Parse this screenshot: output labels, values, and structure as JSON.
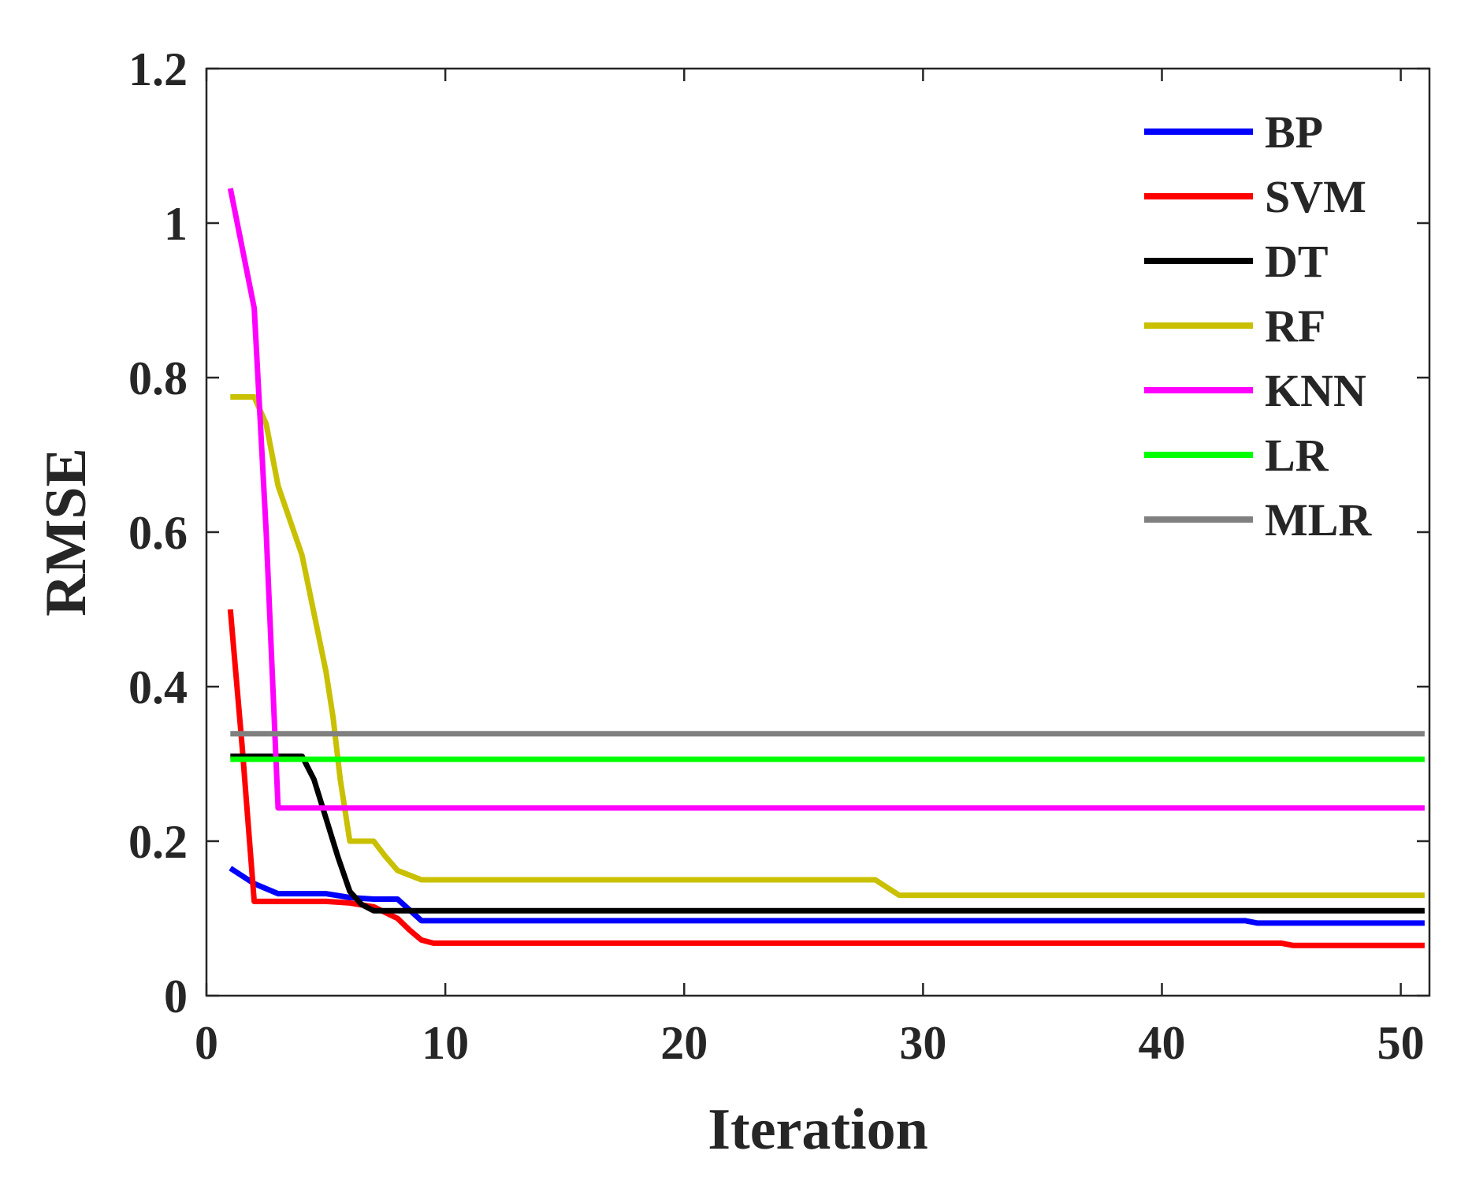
{
  "chart_data": {
    "type": "line",
    "title": "",
    "xlabel": "Iteration",
    "ylabel": "RMSE",
    "xlim": [
      0,
      51.2
    ],
    "ylim": [
      0,
      1.2
    ],
    "xticks": [
      0,
      10,
      20,
      30,
      40,
      50
    ],
    "xtick_labels": [
      "0",
      "10",
      "20",
      "30",
      "40",
      "50"
    ],
    "yticks": [
      0,
      0.2,
      0.4,
      0.6,
      0.8,
      1.0,
      1.2
    ],
    "ytick_labels": [
      "0",
      "0.2",
      "0.4",
      "0.6",
      "0.8",
      "1",
      "1.2"
    ],
    "grid": false,
    "legend_position": "top-right",
    "series": [
      {
        "name": "BP",
        "color": "#0000ff",
        "points": [
          [
            1,
            0.165
          ],
          [
            2,
            0.145
          ],
          [
            3,
            0.132
          ],
          [
            4,
            0.132
          ],
          [
            5,
            0.132
          ],
          [
            6,
            0.127
          ],
          [
            7,
            0.125
          ],
          [
            8,
            0.125
          ],
          [
            9,
            0.097
          ],
          [
            10,
            0.097
          ],
          [
            20,
            0.097
          ],
          [
            30,
            0.097
          ],
          [
            40,
            0.097
          ],
          [
            43.5,
            0.097
          ],
          [
            44,
            0.094
          ],
          [
            51,
            0.094
          ]
        ]
      },
      {
        "name": "SVM",
        "color": "#ff0000",
        "points": [
          [
            1,
            0.5
          ],
          [
            1.5,
            0.32
          ],
          [
            2,
            0.122
          ],
          [
            3,
            0.122
          ],
          [
            4,
            0.122
          ],
          [
            5,
            0.122
          ],
          [
            6,
            0.12
          ],
          [
            7,
            0.115
          ],
          [
            8,
            0.1
          ],
          [
            8.5,
            0.085
          ],
          [
            9,
            0.072
          ],
          [
            9.5,
            0.068
          ],
          [
            10,
            0.068
          ],
          [
            20,
            0.068
          ],
          [
            30,
            0.068
          ],
          [
            40,
            0.068
          ],
          [
            45,
            0.068
          ],
          [
            45.5,
            0.065
          ],
          [
            51,
            0.065
          ]
        ]
      },
      {
        "name": "DT",
        "color": "#000000",
        "points": [
          [
            1,
            0.31
          ],
          [
            2,
            0.31
          ],
          [
            3,
            0.31
          ],
          [
            4,
            0.31
          ],
          [
            4.5,
            0.28
          ],
          [
            5,
            0.23
          ],
          [
            5.5,
            0.18
          ],
          [
            6,
            0.135
          ],
          [
            6.5,
            0.118
          ],
          [
            7,
            0.11
          ],
          [
            8,
            0.11
          ],
          [
            9,
            0.11
          ],
          [
            10,
            0.11
          ],
          [
            20,
            0.11
          ],
          [
            30,
            0.11
          ],
          [
            40,
            0.11
          ],
          [
            51,
            0.11
          ]
        ]
      },
      {
        "name": "RF",
        "color": "#c8c000",
        "points": [
          [
            1,
            0.775
          ],
          [
            2,
            0.775
          ],
          [
            2.5,
            0.74
          ],
          [
            3,
            0.66
          ],
          [
            4,
            0.57
          ],
          [
            5,
            0.42
          ],
          [
            5.3,
            0.36
          ],
          [
            5.6,
            0.28
          ],
          [
            6,
            0.2
          ],
          [
            7,
            0.2
          ],
          [
            7.5,
            0.18
          ],
          [
            8,
            0.162
          ],
          [
            9,
            0.15
          ],
          [
            10,
            0.15
          ],
          [
            20,
            0.15
          ],
          [
            28,
            0.15
          ],
          [
            28.5,
            0.14
          ],
          [
            29,
            0.13
          ],
          [
            30,
            0.13
          ],
          [
            40,
            0.13
          ],
          [
            51,
            0.13
          ]
        ]
      },
      {
        "name": "KNN",
        "color": "#ff00ff",
        "points": [
          [
            1,
            1.045
          ],
          [
            2,
            0.89
          ],
          [
            2.5,
            0.6
          ],
          [
            3,
            0.243
          ],
          [
            4,
            0.243
          ],
          [
            10,
            0.243
          ],
          [
            20,
            0.243
          ],
          [
            30,
            0.243
          ],
          [
            40,
            0.243
          ],
          [
            51,
            0.243
          ]
        ]
      },
      {
        "name": "LR",
        "color": "#00ff00",
        "points": [
          [
            1,
            0.306
          ],
          [
            51,
            0.306
          ]
        ]
      },
      {
        "name": "MLR",
        "color": "#808080",
        "points": [
          [
            1,
            0.339
          ],
          [
            51,
            0.339
          ]
        ]
      }
    ]
  }
}
